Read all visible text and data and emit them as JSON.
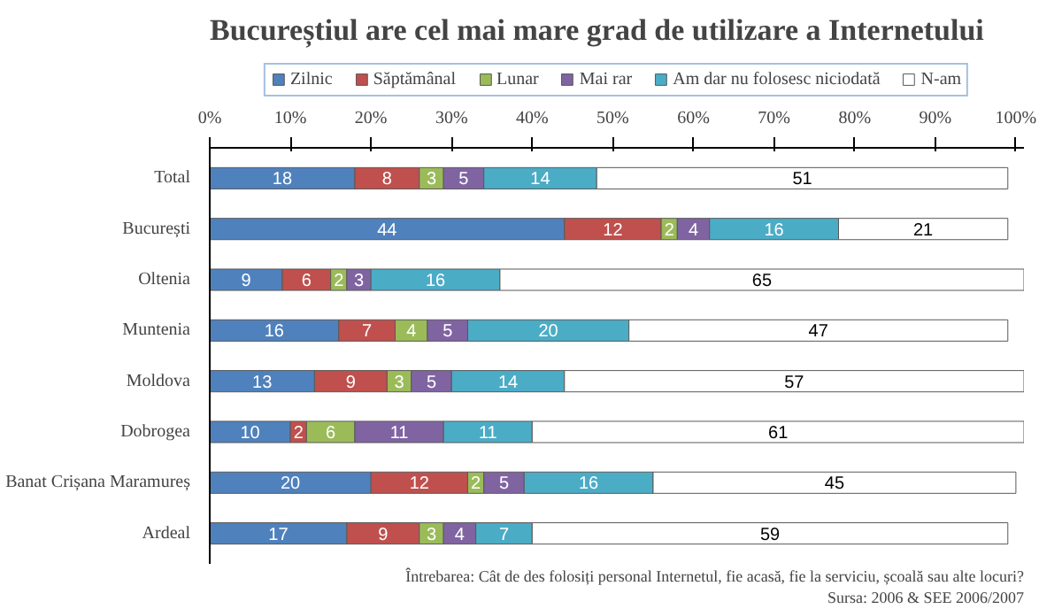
{
  "chart_data": {
    "type": "bar",
    "orientation": "horizontal",
    "stacked": true,
    "title": "Bucureștiul are cel mai mare grad de utilizare a Internetului",
    "categories": [
      "Total",
      "București",
      "Oltenia",
      "Muntenia",
      "Moldova",
      "Dobrogea",
      "Banat Crișana Maramureș",
      "Ardeal"
    ],
    "series": [
      {
        "name": "Zilnic",
        "color": "#4f81bd",
        "values": [
          18,
          44,
          9,
          16,
          13,
          10,
          20,
          17
        ]
      },
      {
        "name": "Săptămânal",
        "color": "#c0504d",
        "values": [
          8,
          12,
          6,
          7,
          9,
          2,
          12,
          9
        ]
      },
      {
        "name": "Lunar",
        "color": "#9bbb59",
        "values": [
          3,
          2,
          2,
          4,
          3,
          6,
          2,
          3
        ]
      },
      {
        "name": "Mai rar",
        "color": "#8064a2",
        "values": [
          5,
          4,
          3,
          5,
          5,
          11,
          5,
          4
        ]
      },
      {
        "name": "Am dar nu folosesc niciodată",
        "color": "#4bacc6",
        "values": [
          14,
          16,
          16,
          20,
          14,
          11,
          16,
          7
        ]
      },
      {
        "name": "N-am",
        "color": "#ffffff",
        "values": [
          51,
          21,
          65,
          47,
          57,
          61,
          45,
          59
        ]
      }
    ],
    "xlim": [
      0,
      101
    ],
    "xticks": [
      {
        "value": 0,
        "label": "0%"
      },
      {
        "value": 10,
        "label": "10%"
      },
      {
        "value": 20,
        "label": "20%"
      },
      {
        "value": 30,
        "label": "30%"
      },
      {
        "value": 40,
        "label": "40%"
      },
      {
        "value": 50,
        "label": "50%"
      },
      {
        "value": 60,
        "label": "60%"
      },
      {
        "value": 70,
        "label": "70%"
      },
      {
        "value": 80,
        "label": "80%"
      },
      {
        "value": 90,
        "label": "90%"
      },
      {
        "value": 100,
        "label": "100%"
      }
    ],
    "data_labels": true,
    "legend": "top",
    "grid": false,
    "annotations": [
      "Întrebarea: Cât de des folosiți personal Internetul, fie acasă, fie la serviciu, școală sau alte locuri?",
      "Sursa: 2006 & SEE 2006/2007"
    ]
  }
}
